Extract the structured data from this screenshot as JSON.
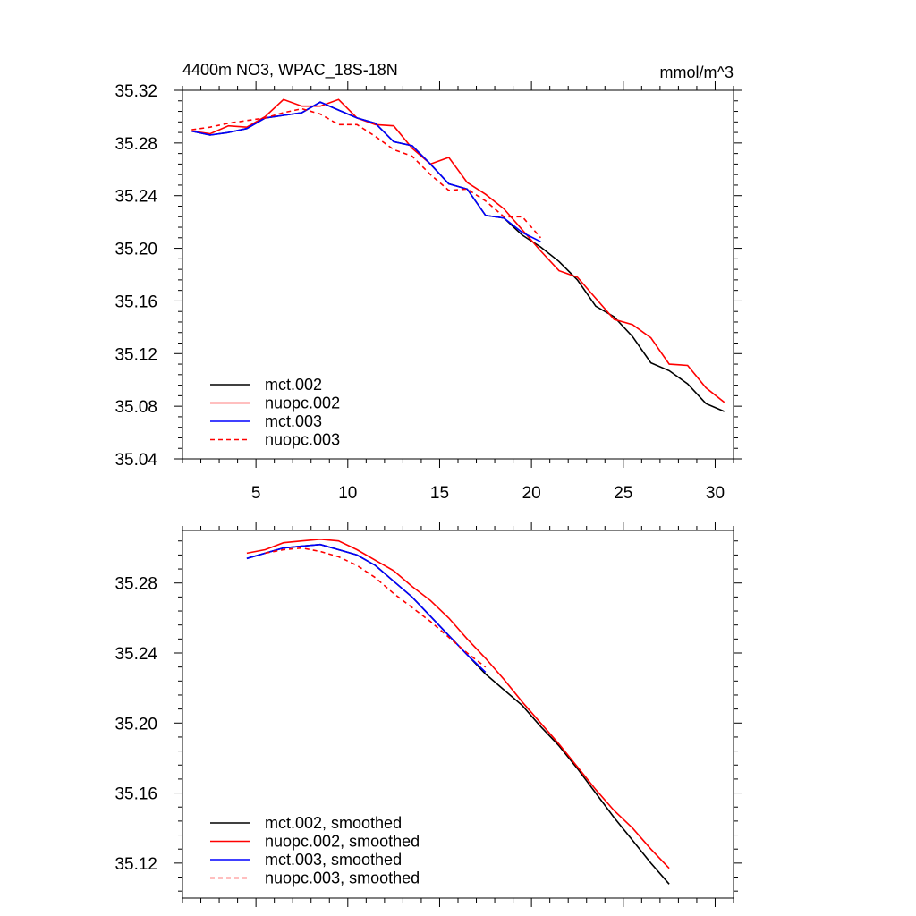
{
  "figure": {
    "title_left": "4400m NO3, WPAC_18S-18N",
    "title_right": "mmol/m^3"
  },
  "colors": {
    "mct.002": "#000000",
    "nuopc.002": "#ff0000",
    "mct.003": "#0000ff",
    "nuopc.003": "#ff0000"
  },
  "chart_data": [
    {
      "type": "line",
      "title": "4400m NO3, WPAC_18S-18N",
      "units_label": "mmol/m^3",
      "xlabel": "",
      "ylabel": "",
      "xlim": [
        1,
        31
      ],
      "ylim": [
        35.04,
        35.32
      ],
      "x_ticks": [
        5,
        10,
        15,
        20,
        25,
        30
      ],
      "y_ticks": [
        35.04,
        35.08,
        35.12,
        35.16,
        35.2,
        35.24,
        35.28,
        35.32
      ],
      "y_tick_labels": [
        "35.04",
        "35.08",
        "35.12",
        "35.16",
        "35.20",
        "35.24",
        "35.28",
        "35.32"
      ],
      "grid": false,
      "legend_position": "bottom-left",
      "series": [
        {
          "name": "mct.002",
          "style": "solid",
          "x": [
            1.5,
            2.5,
            3.5,
            4.5,
            5.5,
            6.5,
            7.5,
            8.5,
            9.5,
            10.5,
            11.5,
            12.5,
            13.5,
            14.5,
            15.5,
            16.5,
            17.5,
            18.5,
            19.5,
            20.5,
            21.5,
            22.5,
            23.5,
            24.5,
            25.5,
            26.5,
            27.5,
            28.5,
            29.5,
            30.5
          ],
          "y": [
            35.289,
            35.286,
            35.288,
            35.291,
            35.299,
            35.301,
            35.303,
            35.311,
            35.305,
            35.299,
            35.295,
            35.281,
            35.278,
            35.264,
            35.249,
            35.245,
            35.225,
            35.223,
            35.21,
            35.201,
            35.19,
            35.176,
            35.156,
            35.148,
            35.133,
            35.113,
            35.107,
            35.097,
            35.082,
            35.076
          ]
        },
        {
          "name": "nuopc.002",
          "style": "solid",
          "x": [
            1.5,
            2.5,
            3.5,
            4.5,
            5.5,
            6.5,
            7.5,
            8.5,
            9.5,
            10.5,
            11.5,
            12.5,
            13.5,
            14.5,
            15.5,
            16.5,
            17.5,
            18.5,
            19.5,
            20.5,
            21.5,
            22.5,
            23.5,
            24.5,
            25.5,
            26.5,
            27.5,
            28.5,
            29.5,
            30.5
          ],
          "y": [
            35.289,
            35.287,
            35.293,
            35.292,
            35.3,
            35.313,
            35.308,
            35.308,
            35.313,
            35.299,
            35.294,
            35.293,
            35.276,
            35.264,
            35.269,
            35.25,
            35.241,
            35.23,
            35.214,
            35.198,
            35.183,
            35.178,
            35.162,
            35.146,
            35.142,
            35.132,
            35.112,
            35.111,
            35.094,
            35.083
          ]
        },
        {
          "name": "mct.003",
          "style": "solid",
          "x": [
            1.5,
            2.5,
            3.5,
            4.5,
            5.5,
            6.5,
            7.5,
            8.5,
            9.5,
            10.5,
            11.5,
            12.5,
            13.5,
            14.5,
            15.5,
            16.5,
            17.5,
            18.5,
            19.5,
            20.5
          ],
          "y": [
            35.289,
            35.286,
            35.288,
            35.291,
            35.299,
            35.301,
            35.303,
            35.311,
            35.305,
            35.299,
            35.295,
            35.281,
            35.278,
            35.264,
            35.249,
            35.245,
            35.225,
            35.223,
            35.212,
            35.205
          ]
        },
        {
          "name": "nuopc.003",
          "style": "dashed",
          "x": [
            1.5,
            2.5,
            3.5,
            4.5,
            5.5,
            6.5,
            7.5,
            8.5,
            9.5,
            10.5,
            11.5,
            12.5,
            13.5,
            14.5,
            15.5,
            16.5,
            17.5,
            18.5,
            19.5,
            20.5
          ],
          "y": [
            35.29,
            35.292,
            35.295,
            35.297,
            35.299,
            35.303,
            35.306,
            35.302,
            35.294,
            35.294,
            35.285,
            35.275,
            35.27,
            35.256,
            35.244,
            35.245,
            35.236,
            35.224,
            35.224,
            35.208
          ]
        }
      ]
    },
    {
      "type": "line",
      "title": "",
      "xlabel": "",
      "ylabel": "",
      "xlim": [
        1,
        31
      ],
      "ylim": [
        35.1,
        35.31
      ],
      "x_ticks": [
        5,
        10,
        15,
        20,
        25,
        30
      ],
      "y_ticks": [
        35.12,
        35.16,
        35.2,
        35.24,
        35.28
      ],
      "y_tick_labels": [
        "35.12",
        "35.16",
        "35.20",
        "35.24",
        "35.28"
      ],
      "grid": false,
      "legend_position": "bottom-left",
      "series": [
        {
          "name": "mct.002, smoothed",
          "style": "solid",
          "x": [
            4.5,
            5.5,
            6.5,
            7.5,
            8.5,
            9.5,
            10.5,
            11.5,
            12.5,
            13.5,
            14.5,
            15.5,
            16.5,
            17.5,
            18.5,
            19.5,
            20.5,
            21.5,
            22.5,
            23.5,
            24.5,
            25.5,
            26.5,
            27.5
          ],
          "y": [
            35.294,
            35.297,
            35.3,
            35.301,
            35.302,
            35.299,
            35.296,
            35.29,
            35.281,
            35.272,
            35.261,
            35.25,
            35.239,
            35.228,
            35.219,
            35.21,
            35.198,
            35.187,
            35.174,
            35.16,
            35.146,
            35.133,
            35.12,
            35.108
          ]
        },
        {
          "name": "nuopc.002, smoothed",
          "style": "solid",
          "x": [
            4.5,
            5.5,
            6.5,
            7.5,
            8.5,
            9.5,
            10.5,
            11.5,
            12.5,
            13.5,
            14.5,
            15.5,
            16.5,
            17.5,
            18.5,
            19.5,
            20.5,
            21.5,
            22.5,
            23.5,
            24.5,
            25.5,
            26.5,
            27.5
          ],
          "y": [
            35.297,
            35.299,
            35.303,
            35.304,
            35.305,
            35.304,
            35.299,
            35.293,
            35.287,
            35.278,
            35.27,
            35.26,
            35.248,
            35.237,
            35.225,
            35.212,
            35.2,
            35.188,
            35.175,
            35.162,
            35.15,
            35.14,
            35.128,
            35.117
          ]
        },
        {
          "name": "mct.003, smoothed",
          "style": "solid",
          "x": [
            4.5,
            5.5,
            6.5,
            7.5,
            8.5,
            9.5,
            10.5,
            11.5,
            12.5,
            13.5,
            14.5,
            15.5,
            16.5,
            17.5
          ],
          "y": [
            35.294,
            35.297,
            35.3,
            35.301,
            35.302,
            35.299,
            35.296,
            35.29,
            35.281,
            35.272,
            35.261,
            35.25,
            35.239,
            35.229
          ]
        },
        {
          "name": "nuopc.003, smoothed",
          "style": "dashed",
          "x": [
            5.5,
            6.5,
            7.5,
            8.5,
            9.5,
            10.5,
            11.5,
            12.5,
            13.5,
            14.5,
            15.5,
            16.5,
            17.5
          ],
          "y": [
            35.297,
            35.299,
            35.3,
            35.298,
            35.295,
            35.29,
            35.283,
            35.274,
            35.266,
            35.258,
            35.249,
            35.24,
            35.232
          ]
        }
      ]
    }
  ]
}
